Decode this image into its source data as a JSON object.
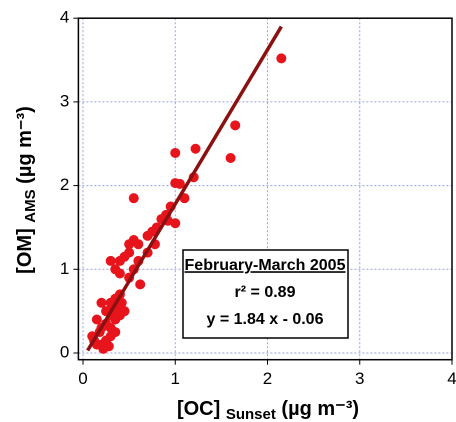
{
  "chart_data": {
    "type": "scatter",
    "xlabel": {
      "main": "[OC]",
      "sub": "Sunset",
      "unit": "(µg m⁻³)"
    },
    "ylabel": {
      "main": "[OM]",
      "sub": "AMS",
      "unit": "(µg m⁻³)"
    },
    "xlim": [
      -0.05,
      4
    ],
    "ylim": [
      -0.08,
      4
    ],
    "xticks": [
      0,
      1,
      2,
      3,
      4
    ],
    "yticks": [
      0,
      1,
      2,
      3,
      4
    ],
    "grid": true,
    "series": [
      {
        "color": "#e8141c",
        "x": [
          2.15,
          1.65,
          1.6,
          1.22,
          1.0,
          0.55,
          1.0,
          1.05,
          1.1,
          0.95,
          0.9,
          1.0,
          0.8,
          0.75,
          0.7,
          0.78,
          0.6,
          0.55,
          0.5,
          0.5,
          0.45,
          0.4,
          0.3,
          0.35,
          0.4,
          0.55,
          0.6,
          0.7,
          0.62,
          0.4,
          0.35,
          0.3,
          0.2,
          0.15,
          0.25,
          0.3,
          0.35,
          0.4,
          0.3,
          0.25,
          0.2,
          0.18,
          0.1,
          0.12,
          0.2,
          0.25,
          0.3,
          0.35,
          0.28,
          0.22,
          0.15,
          0.32,
          0.38,
          0.42,
          0.45,
          0.5,
          0.85,
          1.2,
          0.92
        ],
        "y": [
          3.52,
          2.72,
          2.33,
          2.44,
          2.39,
          1.85,
          2.03,
          2.02,
          1.85,
          1.75,
          1.65,
          1.55,
          1.5,
          1.45,
          1.4,
          1.3,
          1.3,
          1.35,
          1.3,
          1.2,
          1.15,
          1.1,
          1.1,
          1.0,
          0.95,
          1.0,
          1.1,
          1.2,
          0.82,
          0.7,
          0.65,
          0.6,
          0.6,
          0.4,
          0.5,
          0.45,
          0.4,
          0.45,
          0.3,
          0.35,
          0.3,
          0.25,
          0.2,
          0.15,
          0.1,
          0.15,
          0.2,
          0.25,
          0.08,
          0.05,
          0.1,
          0.5,
          0.55,
          0.6,
          0.5,
          0.9,
          1.6,
          2.1,
          1.58
        ]
      }
    ],
    "fit": {
      "color": "#8b1010",
      "x": [
        0.05,
        2.15
      ],
      "y": [
        0.03,
        3.9
      ]
    },
    "annotation": {
      "title": "February-March 2005",
      "lines": [
        "r² = 0.89",
        "y = 1.84 x - 0.06"
      ]
    }
  }
}
